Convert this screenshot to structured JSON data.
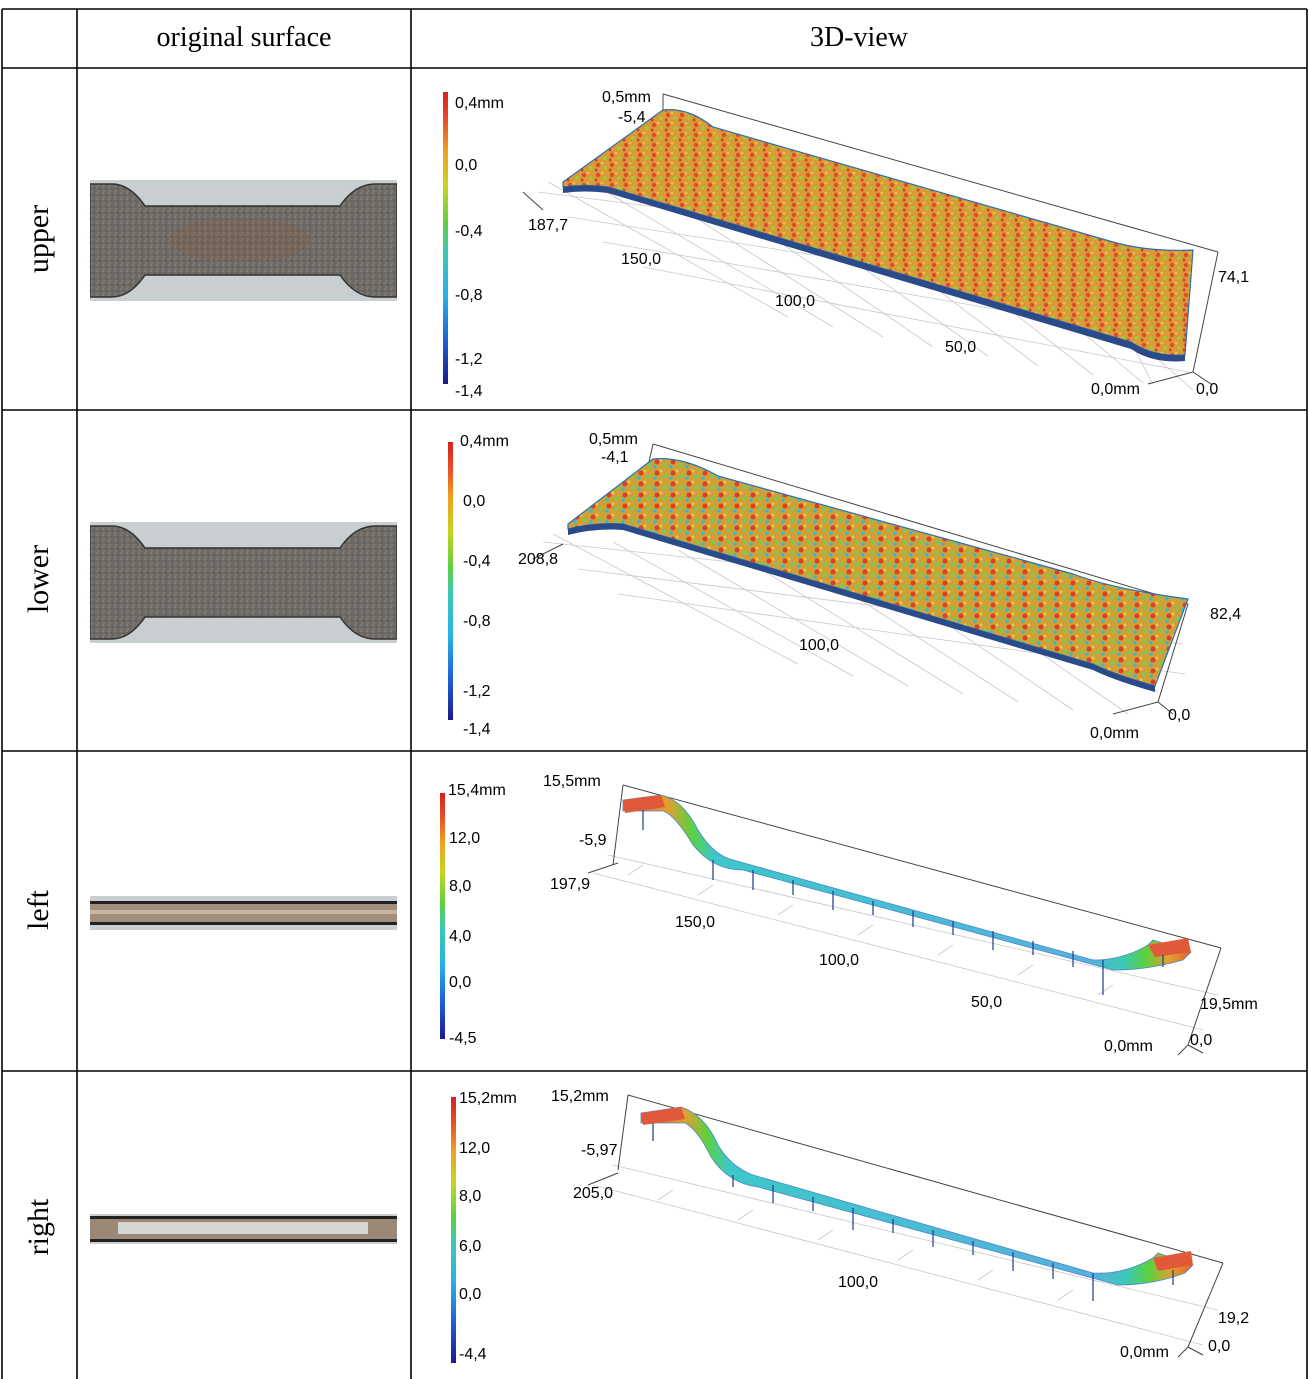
{
  "header": {
    "col1": "original surface",
    "col2": "3D-view"
  },
  "colorbar_palette": [
    "#1a1a8c",
    "#1f5fd6",
    "#27b0e6",
    "#3cc8b4",
    "#5dd040",
    "#c8d420",
    "#f0a020",
    "#e85028",
    "#d62020"
  ],
  "rows": [
    {
      "label": "upper",
      "colorbar": [
        "0,4mm",
        "0,0",
        "-0,4",
        "-0,8",
        "-1,2",
        "-1,4"
      ],
      "axes": {
        "ztop": "0,5mm",
        "zbot": "-5,4",
        "xmax": "187,7",
        "ymax": "74,1",
        "origin": "0,0mm",
        "yzero": "0,0"
      },
      "xticks": [
        "150,0",
        "100,0",
        "50,0"
      ]
    },
    {
      "label": "lower",
      "colorbar": [
        "0,4mm",
        "0,0",
        "-0,4",
        "-0,8",
        "-1,2",
        "-1,4"
      ],
      "axes": {
        "ztop": "0,5mm",
        "zbot": "-4,1",
        "xmax": "208,8",
        "ymax": "82,4",
        "origin": "0,0mm",
        "yzero": "0,0"
      },
      "xticks": [
        "100,0"
      ]
    },
    {
      "label": "left",
      "colorbar": [
        "15,4mm",
        "12,0",
        "8,0",
        "4,0",
        "0,0",
        "-4,5"
      ],
      "axes": {
        "ztop": "15,5mm",
        "zbot": "-5,9",
        "xmax": "197,9",
        "ymax": "19,5mm",
        "origin": "0,0mm",
        "yzero": "0,0"
      },
      "xticks": [
        "150,0",
        "100,0",
        "50,0"
      ]
    },
    {
      "label": "right",
      "colorbar": [
        "15,2mm",
        "12,0",
        "8,0",
        "6,0",
        "0,0",
        "-4,4"
      ],
      "axes": {
        "ztop": "15,2mm",
        "zbot": "-5,97",
        "xmax": "205,0",
        "ymax": "19,2",
        "origin": "0,0mm",
        "yzero": "0,0"
      },
      "xticks": [
        "100,0"
      ]
    }
  ]
}
